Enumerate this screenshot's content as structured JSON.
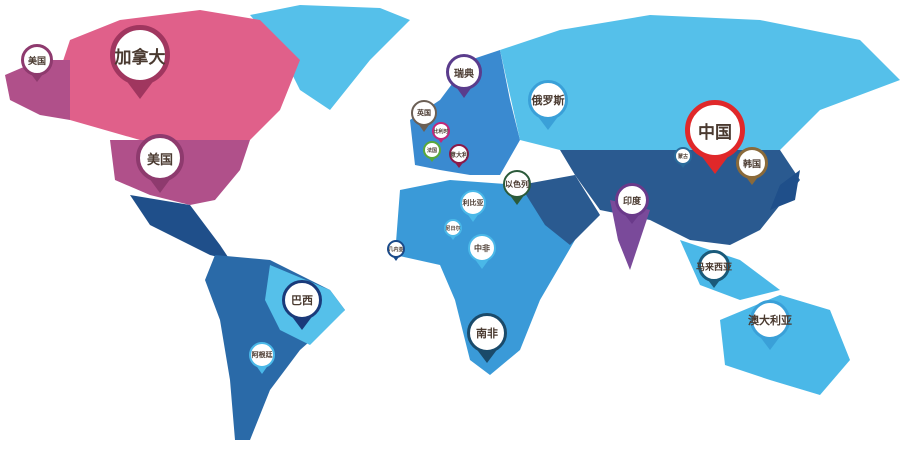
{
  "map": {
    "colors": {
      "north_america": "#e0608a",
      "usa": "#b0508a",
      "central_america": "#1f4f8a",
      "south_america": "#2a6aa8",
      "europe": "#3a8ad0",
      "russia": "#55c0ea",
      "africa": "#3a9ad8",
      "asia": "#2a5a90",
      "china": "#2a5a90",
      "india": "#7a4a9a",
      "oceania": "#4ab8e8",
      "greenland": "#55c0ea"
    },
    "pins": [
      {
        "label": "美国",
        "color": "#8e3a6e"
      },
      {
        "label": "加拿大",
        "color": "#a0365f"
      },
      {
        "label": "美国",
        "color": "#8e3a6e"
      },
      {
        "label": "瑞典",
        "color": "#5a3c8c"
      },
      {
        "label": "英国",
        "color": "#6b5f55"
      },
      {
        "label": "比利时",
        "color": "#c0287a"
      },
      {
        "label": "法国",
        "color": "#5aa83c"
      },
      {
        "label": "意大利",
        "color": "#8a1a4a"
      },
      {
        "label": "俄罗斯",
        "color": "#3aa0d8"
      },
      {
        "label": "以色列",
        "color": "#2b5a3a"
      },
      {
        "label": "利比亚",
        "color": "#4ab8e8"
      },
      {
        "label": "尼日尔",
        "color": "#4ab8e8"
      },
      {
        "label": "中非",
        "color": "#4ab8e8"
      },
      {
        "label": "几内亚",
        "color": "#1a4a8a"
      },
      {
        "label": "中国",
        "color": "#e0282a"
      },
      {
        "label": "蒙古",
        "color": "#2a6a9a"
      },
      {
        "label": "韩国",
        "color": "#8a6a3a"
      },
      {
        "label": "印度",
        "color": "#6a3a8a"
      },
      {
        "label": "马来西亚",
        "color": "#1a5a7a"
      },
      {
        "label": "澳大利亚",
        "color": "#3aa0d8"
      },
      {
        "label": "南非",
        "color": "#1a4a6a"
      },
      {
        "label": "巴西",
        "color": "#1a3a7a"
      },
      {
        "label": "阿根廷",
        "color": "#4ab8e8"
      }
    ]
  }
}
